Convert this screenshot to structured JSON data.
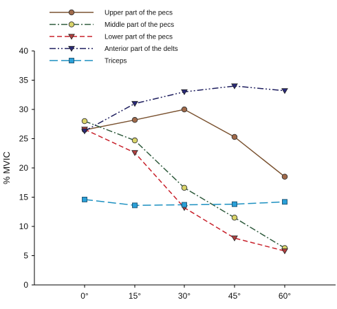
{
  "chart_data": {
    "type": "line",
    "categories": [
      "0°",
      "15°",
      "30°",
      "45°",
      "60°"
    ],
    "ylabel": "% MVIC",
    "ylim": [
      0,
      40
    ],
    "yticks": [
      0,
      5,
      10,
      15,
      20,
      25,
      30,
      35,
      40
    ],
    "grid": false,
    "legend": "top-left",
    "series": [
      {
        "name": "Upper part of the pecs",
        "values": [
          26.5,
          28.2,
          30.0,
          25.3,
          18.5
        ],
        "color": "#7a5230",
        "marker": "circle",
        "marker_fill": "#a06a4a",
        "dash": "solid"
      },
      {
        "name": "Middle part of the pecs",
        "values": [
          28.0,
          24.7,
          16.6,
          11.5,
          6.3
        ],
        "color": "#2e5a3c",
        "marker": "circle",
        "marker_fill": "#d9d46a",
        "dash": "dashdot"
      },
      {
        "name": "Lower part of the pecs",
        "values": [
          26.6,
          22.6,
          13.2,
          8.0,
          5.8
        ],
        "color": "#c8202a",
        "marker": "triangle-down",
        "marker_fill": "#b04040",
        "dash": "dashed"
      },
      {
        "name": "Anterior part of the delts",
        "values": [
          26.3,
          31.0,
          33.0,
          34.0,
          33.2
        ],
        "color": "#1d1d5e",
        "marker": "triangle-down",
        "marker_fill": "#2a2a7a",
        "dash": "dashdotdot"
      },
      {
        "name": "Triceps",
        "values": [
          14.6,
          13.6,
          13.7,
          13.8,
          14.2
        ],
        "color": "#1a8fc0",
        "marker": "square",
        "marker_fill": "#2aa0d8",
        "dash": "longdash"
      }
    ]
  }
}
